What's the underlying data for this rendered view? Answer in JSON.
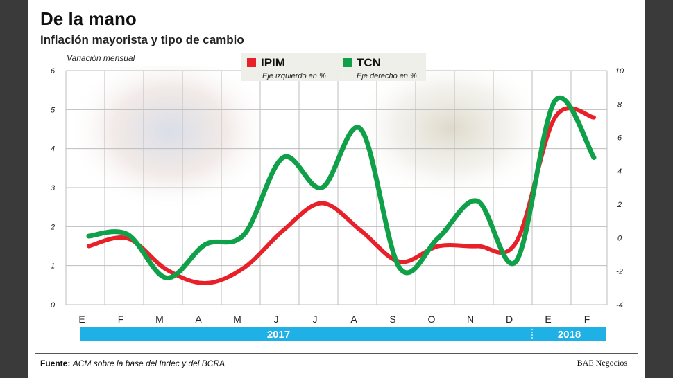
{
  "header": {
    "title": "De la mano",
    "subtitle": "Inflación mayorista y tipo de cambio"
  },
  "footer": {
    "source_label": "Fuente:",
    "source_text": "ACM sobre la base del Indec y del BCRA",
    "brand": "BAE Negocios"
  },
  "colors": {
    "ipim": "#e8202a",
    "tcn": "#11a04a",
    "year_band": "#1fb0e6",
    "grid": "#bdbdbd"
  },
  "chart_data": {
    "type": "line",
    "ylabel_left": "Variación mensual",
    "categories": [
      "E",
      "F",
      "M",
      "A",
      "M",
      "J",
      "J",
      "A",
      "S",
      "O",
      "N",
      "D",
      "E",
      "F"
    ],
    "years": [
      {
        "label": "2017",
        "from_index": 0,
        "to_index": 11
      },
      {
        "label": "2018",
        "from_index": 12,
        "to_index": 13
      }
    ],
    "y_left": {
      "ticks": [
        0,
        1,
        2,
        3,
        4,
        5,
        6
      ],
      "range": [
        0,
        6
      ]
    },
    "y_right": {
      "ticks": [
        -4,
        -2,
        0,
        2,
        4,
        6,
        8,
        10
      ],
      "range": [
        -4,
        10
      ]
    },
    "grid": true,
    "legend_position": "top-center",
    "series": [
      {
        "name": "IPIM",
        "note": "Eje izquierdo en %",
        "axis": "left",
        "color": "#e8202a",
        "values": [
          1.5,
          1.7,
          0.9,
          0.55,
          0.95,
          1.9,
          2.6,
          1.9,
          1.1,
          1.5,
          1.5,
          1.6,
          4.8,
          4.8
        ]
      },
      {
        "name": "TCN",
        "note": "Eje derecho en %",
        "axis": "right",
        "color": "#11a04a",
        "values": [
          0.1,
          0.2,
          -2.4,
          -0.4,
          0.2,
          4.8,
          3.0,
          6.5,
          -1.8,
          0.0,
          2.2,
          -1.4,
          8.2,
          4.8
        ]
      }
    ]
  }
}
